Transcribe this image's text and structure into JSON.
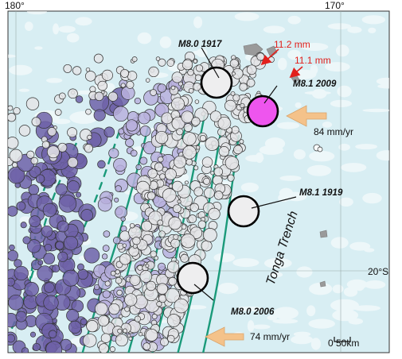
{
  "axes": {
    "longitudes": [
      "180°",
      "170°"
    ],
    "latitude": "20°S"
  },
  "earthquakes": [
    {
      "name": "M8.0 1917",
      "highlight": false
    },
    {
      "name": "M8.1 2009",
      "highlight": true
    },
    {
      "name": "M8.1 1919",
      "highlight": false
    },
    {
      "name": "M8.0 2006",
      "highlight": false
    }
  ],
  "gps_vectors": [
    "11.2 mm",
    "11.1 mm"
  ],
  "plate_rates": [
    "84 mm/yr",
    "74 mm/yr"
  ],
  "trench_label": "Tonga Trench",
  "scale_bar": {
    "label": "0 50km"
  },
  "colors": {
    "ocean": "#d8eef3",
    "seafloor_relief": "#ffffff",
    "land": "#9a9a9a",
    "contours": "#1a9a7a",
    "deep_quakes": "#6e62a8",
    "intermediate_quakes": "#b8b0dd",
    "shallow_quakes": "#e4e4e6",
    "highlight_quake": "#ee55ee",
    "arrow": "#f4c28a",
    "gps_arrow": "#e2201c"
  }
}
